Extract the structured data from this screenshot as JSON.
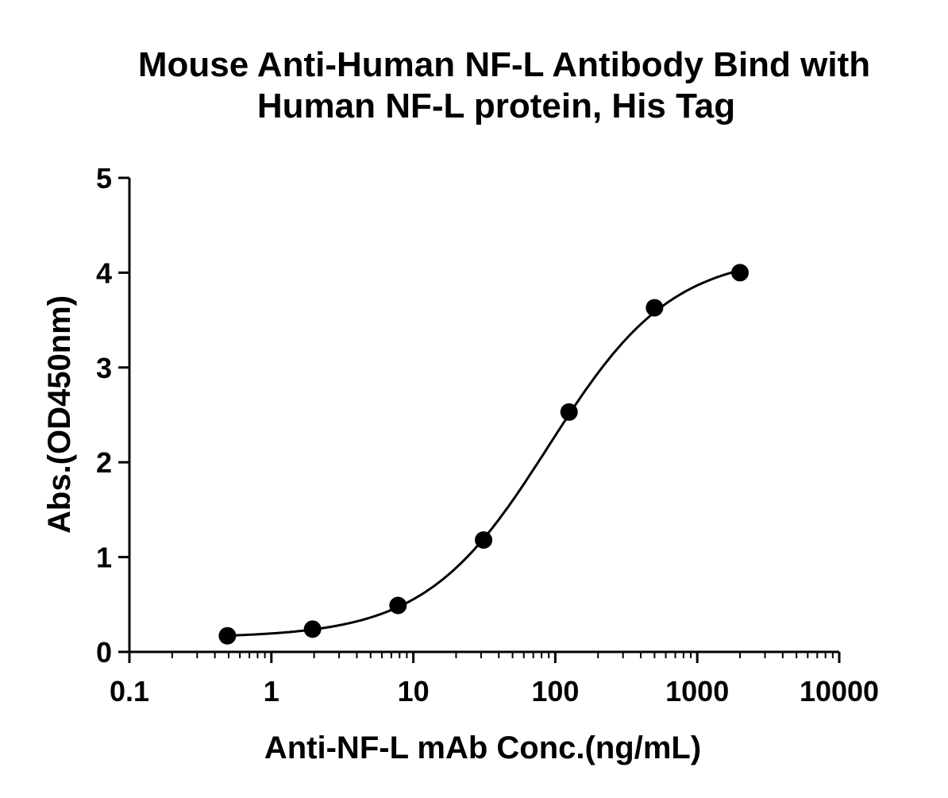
{
  "chart_data": {
    "type": "scatter",
    "title_line1": "Mouse Anti-Human NF-L Antibody Bind with",
    "title_line2": "Human  NF-L protein, His Tag",
    "xlabel": "Anti-NF-L mAb Conc.(ng/mL)",
    "ylabel": "Abs.(OD450nm)",
    "xscale": "log",
    "xlim": [
      0.1,
      10000
    ],
    "ylim": [
      0,
      5
    ],
    "xticks": [
      "0.1",
      "1",
      "10",
      "100",
      "1000",
      "10000"
    ],
    "yticks": [
      "0",
      "1",
      "2",
      "3",
      "4",
      "5"
    ],
    "series": [
      {
        "name": "Anti-NF-L mAb",
        "x": [
          0.49,
          1.95,
          7.8,
          31.25,
          125,
          500,
          2000
        ],
        "y": [
          0.17,
          0.24,
          0.49,
          1.18,
          2.53,
          3.63,
          4.0
        ],
        "fit": {
          "model": "4PL",
          "bottom": 0.15,
          "top": 4.2,
          "ec50": 90,
          "hill": 1.0
        }
      }
    ],
    "grid": false,
    "legend": "none",
    "color": "#000000"
  }
}
